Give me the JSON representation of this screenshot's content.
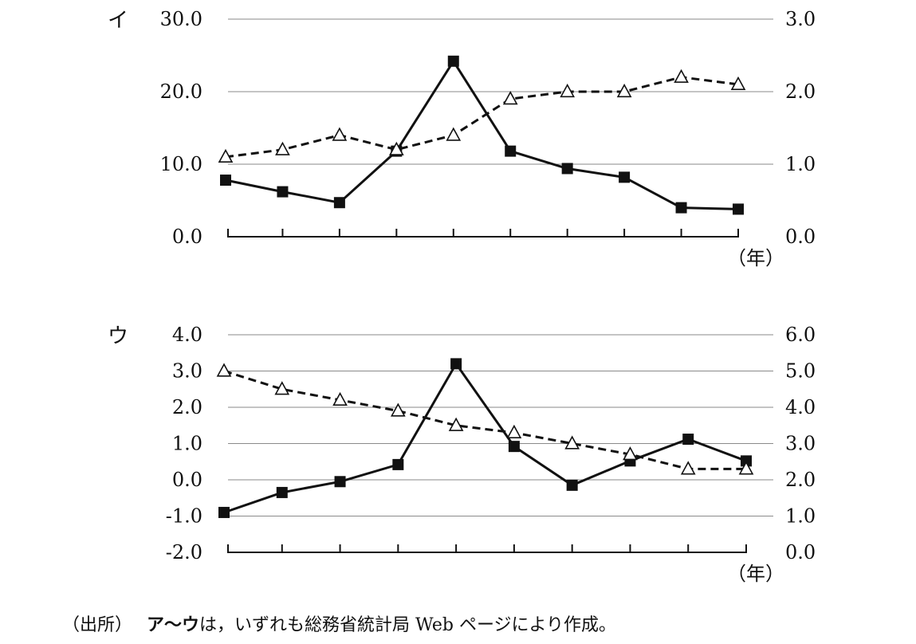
{
  "chart_data": [
    {
      "panel_label": "イ",
      "type": "line",
      "x": [
        1,
        2,
        3,
        4,
        5,
        6,
        7,
        8,
        9,
        10
      ],
      "x_unit_label": "（年）",
      "y_left": {
        "ylim": [
          0,
          30
        ],
        "ticks": [
          "0.0",
          "10.0",
          "20.0",
          "30.0"
        ]
      },
      "y_right": {
        "ylim": [
          0,
          3
        ],
        "ticks": [
          "0.0",
          "1.0",
          "2.0",
          "3.0"
        ]
      },
      "grid": true,
      "series": [
        {
          "axis": "left",
          "style": "solid",
          "marker": "filled-square",
          "values": [
            7.8,
            6.2,
            4.7,
            11.8,
            24.2,
            11.8,
            9.4,
            8.2,
            4.0,
            3.8
          ]
        },
        {
          "axis": "right",
          "style": "dashed",
          "marker": "open-triangle",
          "values": [
            1.1,
            1.2,
            1.4,
            1.2,
            1.4,
            1.9,
            2.0,
            2.0,
            2.2,
            2.1
          ]
        }
      ]
    },
    {
      "panel_label": "ウ",
      "type": "line",
      "x": [
        1,
        2,
        3,
        4,
        5,
        6,
        7,
        8,
        9,
        10
      ],
      "x_unit_label": "（年）",
      "y_left": {
        "ylim": [
          -2,
          4
        ],
        "ticks": [
          "-2.0",
          "-1.0",
          "0.0",
          "1.0",
          "2.0",
          "3.0",
          "4.0"
        ]
      },
      "y_right": {
        "ylim": [
          0,
          6
        ],
        "ticks": [
          "0.0",
          "1.0",
          "2.0",
          "3.0",
          "4.0",
          "5.0",
          "6.0"
        ]
      },
      "grid": true,
      "series": [
        {
          "axis": "left",
          "style": "solid",
          "marker": "filled-square",
          "values": [
            -0.9,
            -0.35,
            -0.05,
            0.42,
            3.2,
            0.92,
            -0.15,
            0.52,
            1.12,
            0.52
          ]
        },
        {
          "axis": "right",
          "style": "dashed",
          "marker": "open-triangle",
          "values": [
            5.0,
            4.5,
            4.2,
            3.9,
            3.5,
            3.3,
            3.0,
            2.7,
            2.3,
            2.3
          ]
        }
      ]
    }
  ],
  "source": {
    "prefix": "（出所）",
    "bold_part": "ア〜ウ",
    "rest": "は，いずれも総務省統計局 Web ページにより作成。"
  }
}
